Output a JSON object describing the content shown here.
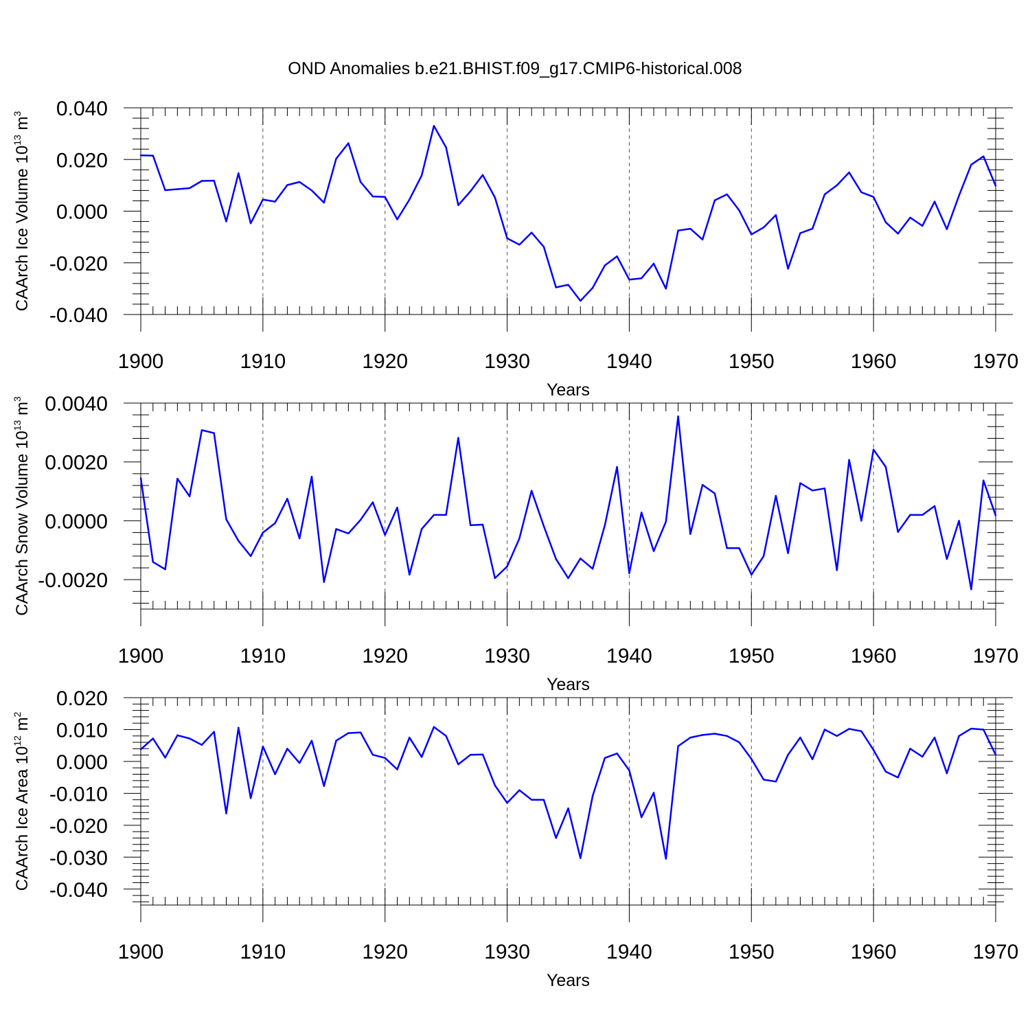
{
  "title": "OND Anomalies b.e21.BHIST.f09_g17.CMIP6-historical.008",
  "colors": {
    "line": "#0000ff",
    "axes": "#000000",
    "grid": "#555555"
  },
  "chart_data": [
    {
      "type": "line",
      "ylabel_main": "CAArch Ice Volume 10",
      "ylabel_exp": "13",
      "ylabel_unit": " m",
      "ylabel_unit_exp": "3",
      "xlabel": "Years",
      "xlim": [
        1900,
        1970
      ],
      "ylim": [
        -0.04,
        0.04
      ],
      "yticks": [
        -0.04,
        -0.02,
        0.0,
        0.02,
        0.04
      ],
      "ytick_labels": [
        "-0.040",
        "-0.020",
        "0.000",
        "0.020",
        "0.040"
      ],
      "xticks": [
        1900,
        1910,
        1920,
        1930,
        1940,
        1950,
        1960,
        1970
      ],
      "xtick_labels": [
        "1900",
        "1910",
        "1920",
        "1930",
        "1940",
        "1950",
        "1960",
        "1970"
      ],
      "grid_x": [
        1910,
        1920,
        1930,
        1940,
        1950,
        1960
      ],
      "x_start": 1900,
      "values": [
        0.0216,
        0.0215,
        0.0081,
        0.0085,
        0.0089,
        0.0117,
        0.0118,
        -0.004,
        0.0147,
        -0.0047,
        0.0045,
        0.0037,
        0.0101,
        0.0113,
        0.008,
        0.0033,
        0.0203,
        0.0263,
        0.0113,
        0.0057,
        0.0055,
        -0.0032,
        0.0045,
        0.0138,
        0.033,
        0.0247,
        0.0023,
        0.0077,
        0.014,
        0.0053,
        -0.0105,
        -0.013,
        -0.0083,
        -0.0138,
        -0.0295,
        -0.0285,
        -0.0347,
        -0.0297,
        -0.021,
        -0.0175,
        -0.0265,
        -0.026,
        -0.0203,
        -0.03,
        -0.0075,
        -0.0068,
        -0.011,
        0.0042,
        0.0065,
        0.0003,
        -0.009,
        -0.0063,
        -0.0015,
        -0.0223,
        -0.0085,
        -0.0068,
        0.0065,
        0.01,
        0.015,
        0.0073,
        0.0055,
        -0.0043,
        -0.0087,
        -0.0025,
        -0.0057,
        0.0037,
        -0.007,
        0.006,
        0.018,
        0.0212,
        0.0098
      ]
    },
    {
      "type": "line",
      "ylabel_main": "CAArch Snow Volume 10",
      "ylabel_exp": "13",
      "ylabel_unit": " m",
      "ylabel_unit_exp": "3",
      "xlabel": "Years",
      "xlim": [
        1900,
        1970
      ],
      "ylim": [
        -0.003,
        0.004
      ],
      "yticks": [
        -0.002,
        0.0,
        0.002,
        0.004
      ],
      "ytick_labels": [
        "-0.0020",
        "0.0000",
        "0.0020",
        "0.0040"
      ],
      "xticks": [
        1900,
        1910,
        1920,
        1930,
        1940,
        1950,
        1960,
        1970
      ],
      "xtick_labels": [
        "1900",
        "1910",
        "1920",
        "1930",
        "1940",
        "1950",
        "1960",
        "1970"
      ],
      "grid_x": [
        1910,
        1920,
        1930,
        1940,
        1950,
        1960
      ],
      "x_start": 1900,
      "values": [
        0.00145,
        -0.0014,
        -0.00165,
        0.00143,
        0.00083,
        0.00308,
        0.00298,
        5e-05,
        -0.00068,
        -0.0012,
        -0.0004,
        -8e-05,
        0.00075,
        -0.0006,
        0.0015,
        -0.00208,
        -0.00028,
        -0.00043,
        3e-05,
        0.00063,
        -0.00048,
        0.00045,
        -0.00183,
        -0.00028,
        0.0002,
        0.0002,
        0.00282,
        -0.00015,
        -0.00013,
        -0.00195,
        -0.00155,
        -0.0006,
        0.00102,
        -0.00018,
        -0.0013,
        -0.00195,
        -0.00128,
        -0.00163,
        -0.00015,
        0.00183,
        -0.00178,
        0.00028,
        -0.00103,
        -3e-05,
        0.00355,
        -0.00045,
        0.00122,
        0.00093,
        -0.00093,
        -0.00093,
        -0.00183,
        -0.0012,
        0.00085,
        -0.0011,
        0.00128,
        0.00103,
        0.0011,
        -0.00168,
        0.00207,
        0.0,
        0.00242,
        0.00183,
        -0.00038,
        0.0002,
        0.0002,
        0.0005,
        -0.0013,
        0.0,
        -0.00233,
        0.00137,
        0.00018
      ]
    },
    {
      "type": "line",
      "ylabel_main": "CAArch Ice Area 10",
      "ylabel_exp": "12",
      "ylabel_unit": " m",
      "ylabel_unit_exp": "2",
      "xlabel": "Years",
      "xlim": [
        1900,
        1970
      ],
      "ylim": [
        -0.045,
        0.02
      ],
      "yticks": [
        -0.04,
        -0.03,
        -0.02,
        -0.01,
        0.0,
        0.01,
        0.02
      ],
      "ytick_labels": [
        "-0.040",
        "-0.030",
        "-0.020",
        "-0.010",
        "0.000",
        "0.010",
        "0.020"
      ],
      "xticks": [
        1900,
        1910,
        1920,
        1930,
        1940,
        1950,
        1960,
        1970
      ],
      "xtick_labels": [
        "1900",
        "1910",
        "1920",
        "1930",
        "1940",
        "1950",
        "1960",
        "1970"
      ],
      "grid_x": [
        1910,
        1920,
        1930,
        1940,
        1950,
        1960
      ],
      "x_start": 1900,
      "values": [
        0.0038,
        0.0072,
        0.0012,
        0.0082,
        0.0072,
        0.0052,
        0.0093,
        -0.0163,
        0.0106,
        -0.0115,
        0.0047,
        -0.004,
        0.004,
        -0.0005,
        0.0065,
        -0.0077,
        0.0065,
        0.0089,
        0.0091,
        0.0021,
        0.0011,
        -0.0025,
        0.0075,
        0.0014,
        0.0108,
        0.008,
        -0.0009,
        0.0021,
        0.0022,
        -0.0075,
        -0.013,
        -0.009,
        -0.012,
        -0.012,
        -0.024,
        -0.0147,
        -0.0303,
        -0.0108,
        0.0011,
        0.0025,
        -0.0028,
        -0.0175,
        -0.0098,
        -0.0305,
        0.0048,
        0.0075,
        0.0083,
        0.0087,
        0.008,
        0.006,
        0.0008,
        -0.0057,
        -0.0063,
        0.0021,
        0.0075,
        0.0007,
        0.01,
        0.008,
        0.0102,
        0.0095,
        0.0036,
        -0.0032,
        -0.005,
        0.004,
        0.0015,
        0.0075,
        -0.0037,
        0.008,
        0.0103,
        0.01,
        0.0021
      ]
    }
  ]
}
